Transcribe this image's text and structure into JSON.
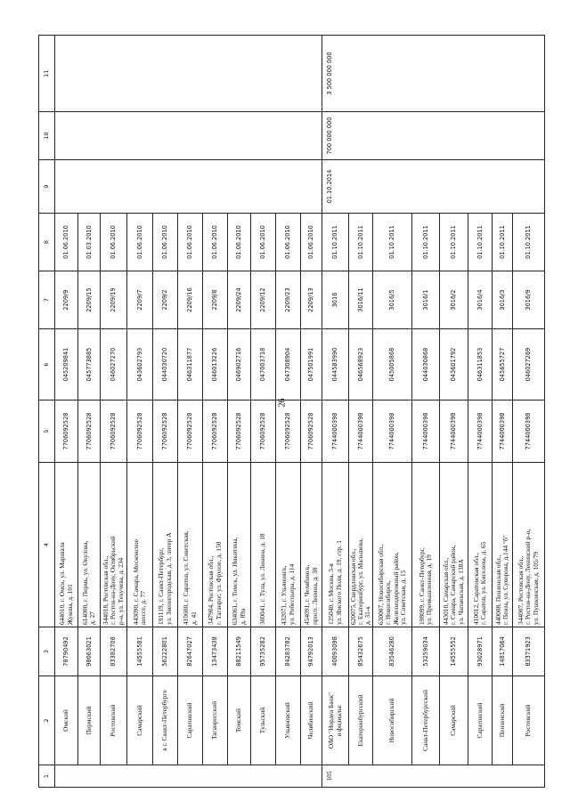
{
  "page_number": "26",
  "table": {
    "header": [
      "1",
      "2",
      "3",
      "4",
      "5",
      "6",
      "7",
      "8",
      "9",
      "10",
      "11"
    ],
    "group2": {
      "number": "105",
      "col9": "01.10.2014",
      "col10": "700 000 000",
      "col11": "3 500 000 000"
    },
    "rows": [
      {
        "name": "Омский",
        "okpo": "78790492",
        "address": "644010, г. Омск, ул. Маршала\nЖукова, д. 101",
        "inn": "7706092528",
        "bik": "045209841",
        "reg": "2209/9",
        "date": "01.06.2010"
      },
      {
        "name": "Пермский",
        "okpo": "98063021",
        "address": "614000, г. Пермь, ул. Окулова,\nд. 27",
        "inn": "7706092528",
        "bik": "045773885",
        "reg": "2209/15",
        "date": "01.03.2010"
      },
      {
        "name": "Ростовский",
        "okpo": "83382708",
        "address": "344018, Ростовская обл.,\nг. Ростов-на-Дону, Октябрьский\nр-н, ул. Текучева, д. 234",
        "inn": "7706092528",
        "bik": "046027270",
        "reg": "2209/19",
        "date": "01.06.2010"
      },
      {
        "name": "Самарский",
        "okpo": "14555581",
        "address": "443090, г. Самара, Московское\nшоссе, д. 77",
        "inn": "7706092528",
        "bik": "043602793",
        "reg": "2209/7",
        "date": "01.06.2010"
      },
      {
        "name": "в г. Санкт-Петербурге",
        "okpo": "56222801",
        "address": "191119, г. Санкт-Петербург,\nул. Звенигородская, д. 3, литер А",
        "inn": "7706092528",
        "bik": "044030720",
        "reg": "2209/2",
        "date": "01.06.2010"
      },
      {
        "name": "Саратовский",
        "okpo": "82647027",
        "address": "410600, г. Саратов, ул. Советская,\nд. 41",
        "inn": "7706092528",
        "bik": "046311877",
        "reg": "2209/16",
        "date": "01.06.2010"
      },
      {
        "name": "Таганрогский",
        "okpo": "13473438",
        "address": "347904, Ростовская обл.,\nг. Таганрог, ул. Фрунзе, д. 150",
        "inn": "7706092528",
        "bik": "046013226",
        "reg": "2209/8",
        "date": "01.06.2010"
      },
      {
        "name": "Томский",
        "okpo": "88211549",
        "address": "634061, г. Томск, ул. Никитина,\nд. 89а",
        "inn": "7706092528",
        "bik": "046902716",
        "reg": "2209/24",
        "date": "01.06.2010"
      },
      {
        "name": "Тульский",
        "okpo": "95735282",
        "address": "300041, г. Тула, ул. Ленина, д. 18",
        "inn": "7706092528",
        "bik": "047003718",
        "reg": "2209/12",
        "date": "01.06.2010"
      },
      {
        "name": "Ульяновский",
        "okpo": "84283782",
        "address": "432071, г. Ульяновск,\nул. Робеспьера, д. 114",
        "inn": "7706092528",
        "bik": "047308904",
        "reg": "2209/23",
        "date": "01.06.2010"
      },
      {
        "name": "Челябинский",
        "okpo": "94792013",
        "address": "454091, г. Челябинск,\nпросп. Ленина, д. 38",
        "inn": "7706092528",
        "bik": "047501991",
        "reg": "2209/13",
        "date": "01.06.2010"
      },
      {
        "name": "ОАО \"Нордеа Банк\"\nи филиалы:",
        "okpo": "40093098",
        "address": "125040, г. Москва, 3-я\nул. Ямского Поля, д. 19, стр. 1",
        "inn": "7744000398",
        "bik": "044583990",
        "reg": "3016",
        "date": "01.10.2011"
      },
      {
        "name": "Екатеринбургский",
        "okpo": "85432675",
        "address": "620075, Свердловская обл.,\nг. Екатеринбург, ул. Мальшева,\nд. 31-к",
        "inn": "7744000398",
        "bik": "046568923",
        "reg": "3016/11",
        "date": "01.10.2011"
      },
      {
        "name": "Новосибирский",
        "okpo": "83546280",
        "address": "630007, Новосибирская обл.,\nг. Новосибирск,\nЖелезнодорожный район,\nул. Советская, д. 15",
        "inn": "7744000398",
        "bik": "045005868",
        "reg": "3016/5",
        "date": "01.10.2011"
      },
      {
        "name": "Санкт-Петербургский",
        "okpo": "53259034",
        "address": "198099, г. Санкт-Петербург,\nул. Промышленная, д. 19",
        "inn": "7744000398",
        "bik": "044030868",
        "reg": "3016/1",
        "date": "01.10.2011"
      },
      {
        "name": "Самарский",
        "okpo": "14555552",
        "address": "443010, Самарская обл.,\nг. Самара, Самарский район,\nул. Чапаевская, д. 138А",
        "inn": "7744000398",
        "bik": "043601792",
        "reg": "3016/2",
        "date": "01.10.2011"
      },
      {
        "name": "Саратовский",
        "okpo": "93028971",
        "address": "410012, Саратовская обл.,\nг. Саратов, ул. Киселева, д. 65",
        "inn": "7744000398",
        "bik": "046311853",
        "reg": "3016/4",
        "date": "01.10.2011"
      },
      {
        "name": "Пензенский",
        "okpo": "14817064",
        "address": "440008, Пензенская обл.,\nг. Пенза, ул. Суворова, д.144 \"б\"",
        "inn": "7744000398",
        "bik": "045655727",
        "reg": "3016/3",
        "date": "01.10.2011"
      },
      {
        "name": "Ростовский",
        "okpo": "83371923",
        "address": "344007, Ростовская обл.,\nг. Ростов-на-Дону, Ленинский р-н,\nул. Пушкинская, д. 105/79",
        "inn": "7744000398",
        "bik": "046027269",
        "reg": "3016/9",
        "date": "01.10.2011"
      }
    ]
  }
}
